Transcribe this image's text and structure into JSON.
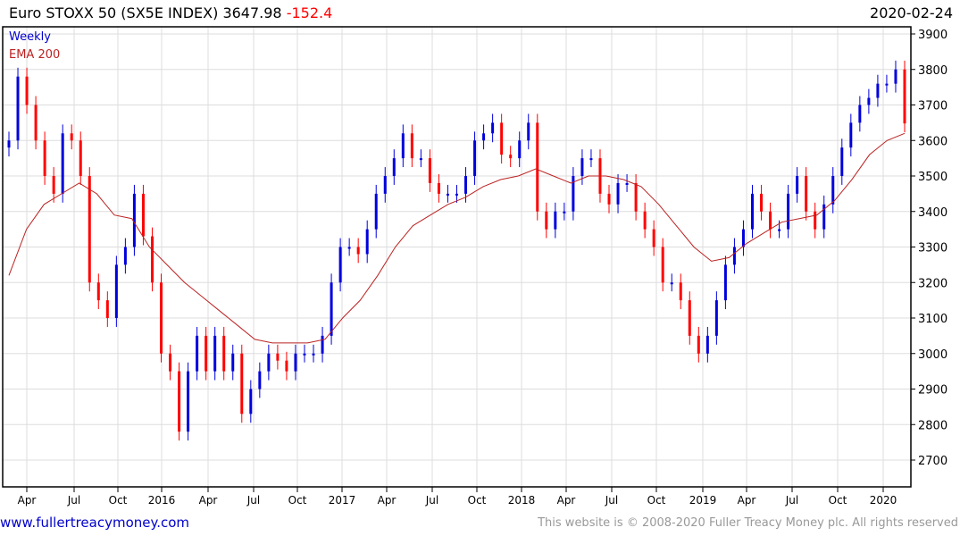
{
  "header": {
    "title": "Euro STOXX 50 (SX5E INDEX) 3647.98",
    "change": "-152.4",
    "date": "2020-02-24"
  },
  "legend": {
    "period": "Weekly",
    "ema": "EMA 200"
  },
  "footer": {
    "link": "www.fullertreacymoney.com",
    "copyright": "This website is © 2008-2020 Fuller Treacy Money plc. All rights reserved"
  },
  "colors": {
    "up": "#0000dd",
    "down": "#ff0000",
    "ema": "#bb2222",
    "grid": "#dddddd"
  },
  "chart_data": {
    "type": "ohlc",
    "title": "Euro STOXX 50 (SX5E INDEX) Weekly",
    "ylim": [
      2640,
      3920
    ],
    "yticks": [
      2700,
      2800,
      2900,
      3000,
      3100,
      3200,
      3300,
      3400,
      3500,
      3600,
      3700,
      3800,
      3900
    ],
    "xticks": [
      "Apr",
      "Jul",
      "Oct",
      "2016",
      "Apr",
      "Jul",
      "Oct",
      "2017",
      "Apr",
      "Jul",
      "Oct",
      "2018",
      "Apr",
      "Jul",
      "Oct",
      "2019",
      "Apr",
      "Jul",
      "Oct",
      "2020"
    ],
    "close": [
      3600,
      3780,
      3700,
      3600,
      3500,
      3450,
      3620,
      3600,
      3500,
      3200,
      3150,
      3100,
      3250,
      3300,
      3450,
      3330,
      3200,
      3000,
      2950,
      2780,
      2950,
      3050,
      2950,
      3050,
      2950,
      3000,
      2830,
      2900,
      2950,
      3000,
      2980,
      2950,
      3000,
      3000,
      3000,
      3050,
      3200,
      3300,
      3300,
      3280,
      3350,
      3450,
      3500,
      3550,
      3620,
      3550,
      3550,
      3480,
      3450,
      3450,
      3450,
      3500,
      3600,
      3620,
      3650,
      3560,
      3550,
      3600,
      3650,
      3400,
      3350,
      3400,
      3400,
      3500,
      3550,
      3550,
      3450,
      3420,
      3480,
      3480,
      3400,
      3350,
      3300,
      3200,
      3200,
      3150,
      3050,
      3000,
      3050,
      3150,
      3250,
      3300,
      3350,
      3450,
      3400,
      3350,
      3350,
      3450,
      3500,
      3400,
      3350,
      3420,
      3500,
      3580,
      3650,
      3700,
      3720,
      3760,
      3760,
      3800,
      3648
    ],
    "ema_200": [
      3220,
      3350,
      3420,
      3450,
      3480,
      3450,
      3390,
      3380,
      3300,
      3250,
      3200,
      3160,
      3120,
      3080,
      3040,
      3030,
      3030,
      3030,
      3040,
      3100,
      3150,
      3220,
      3300,
      3360,
      3390,
      3420,
      3440,
      3470,
      3490,
      3500,
      3520,
      3500,
      3480,
      3500,
      3500,
      3490,
      3470,
      3420,
      3360,
      3300,
      3260,
      3270,
      3310,
      3340,
      3370,
      3380,
      3390,
      3430,
      3490,
      3560,
      3600,
      3620
    ]
  }
}
